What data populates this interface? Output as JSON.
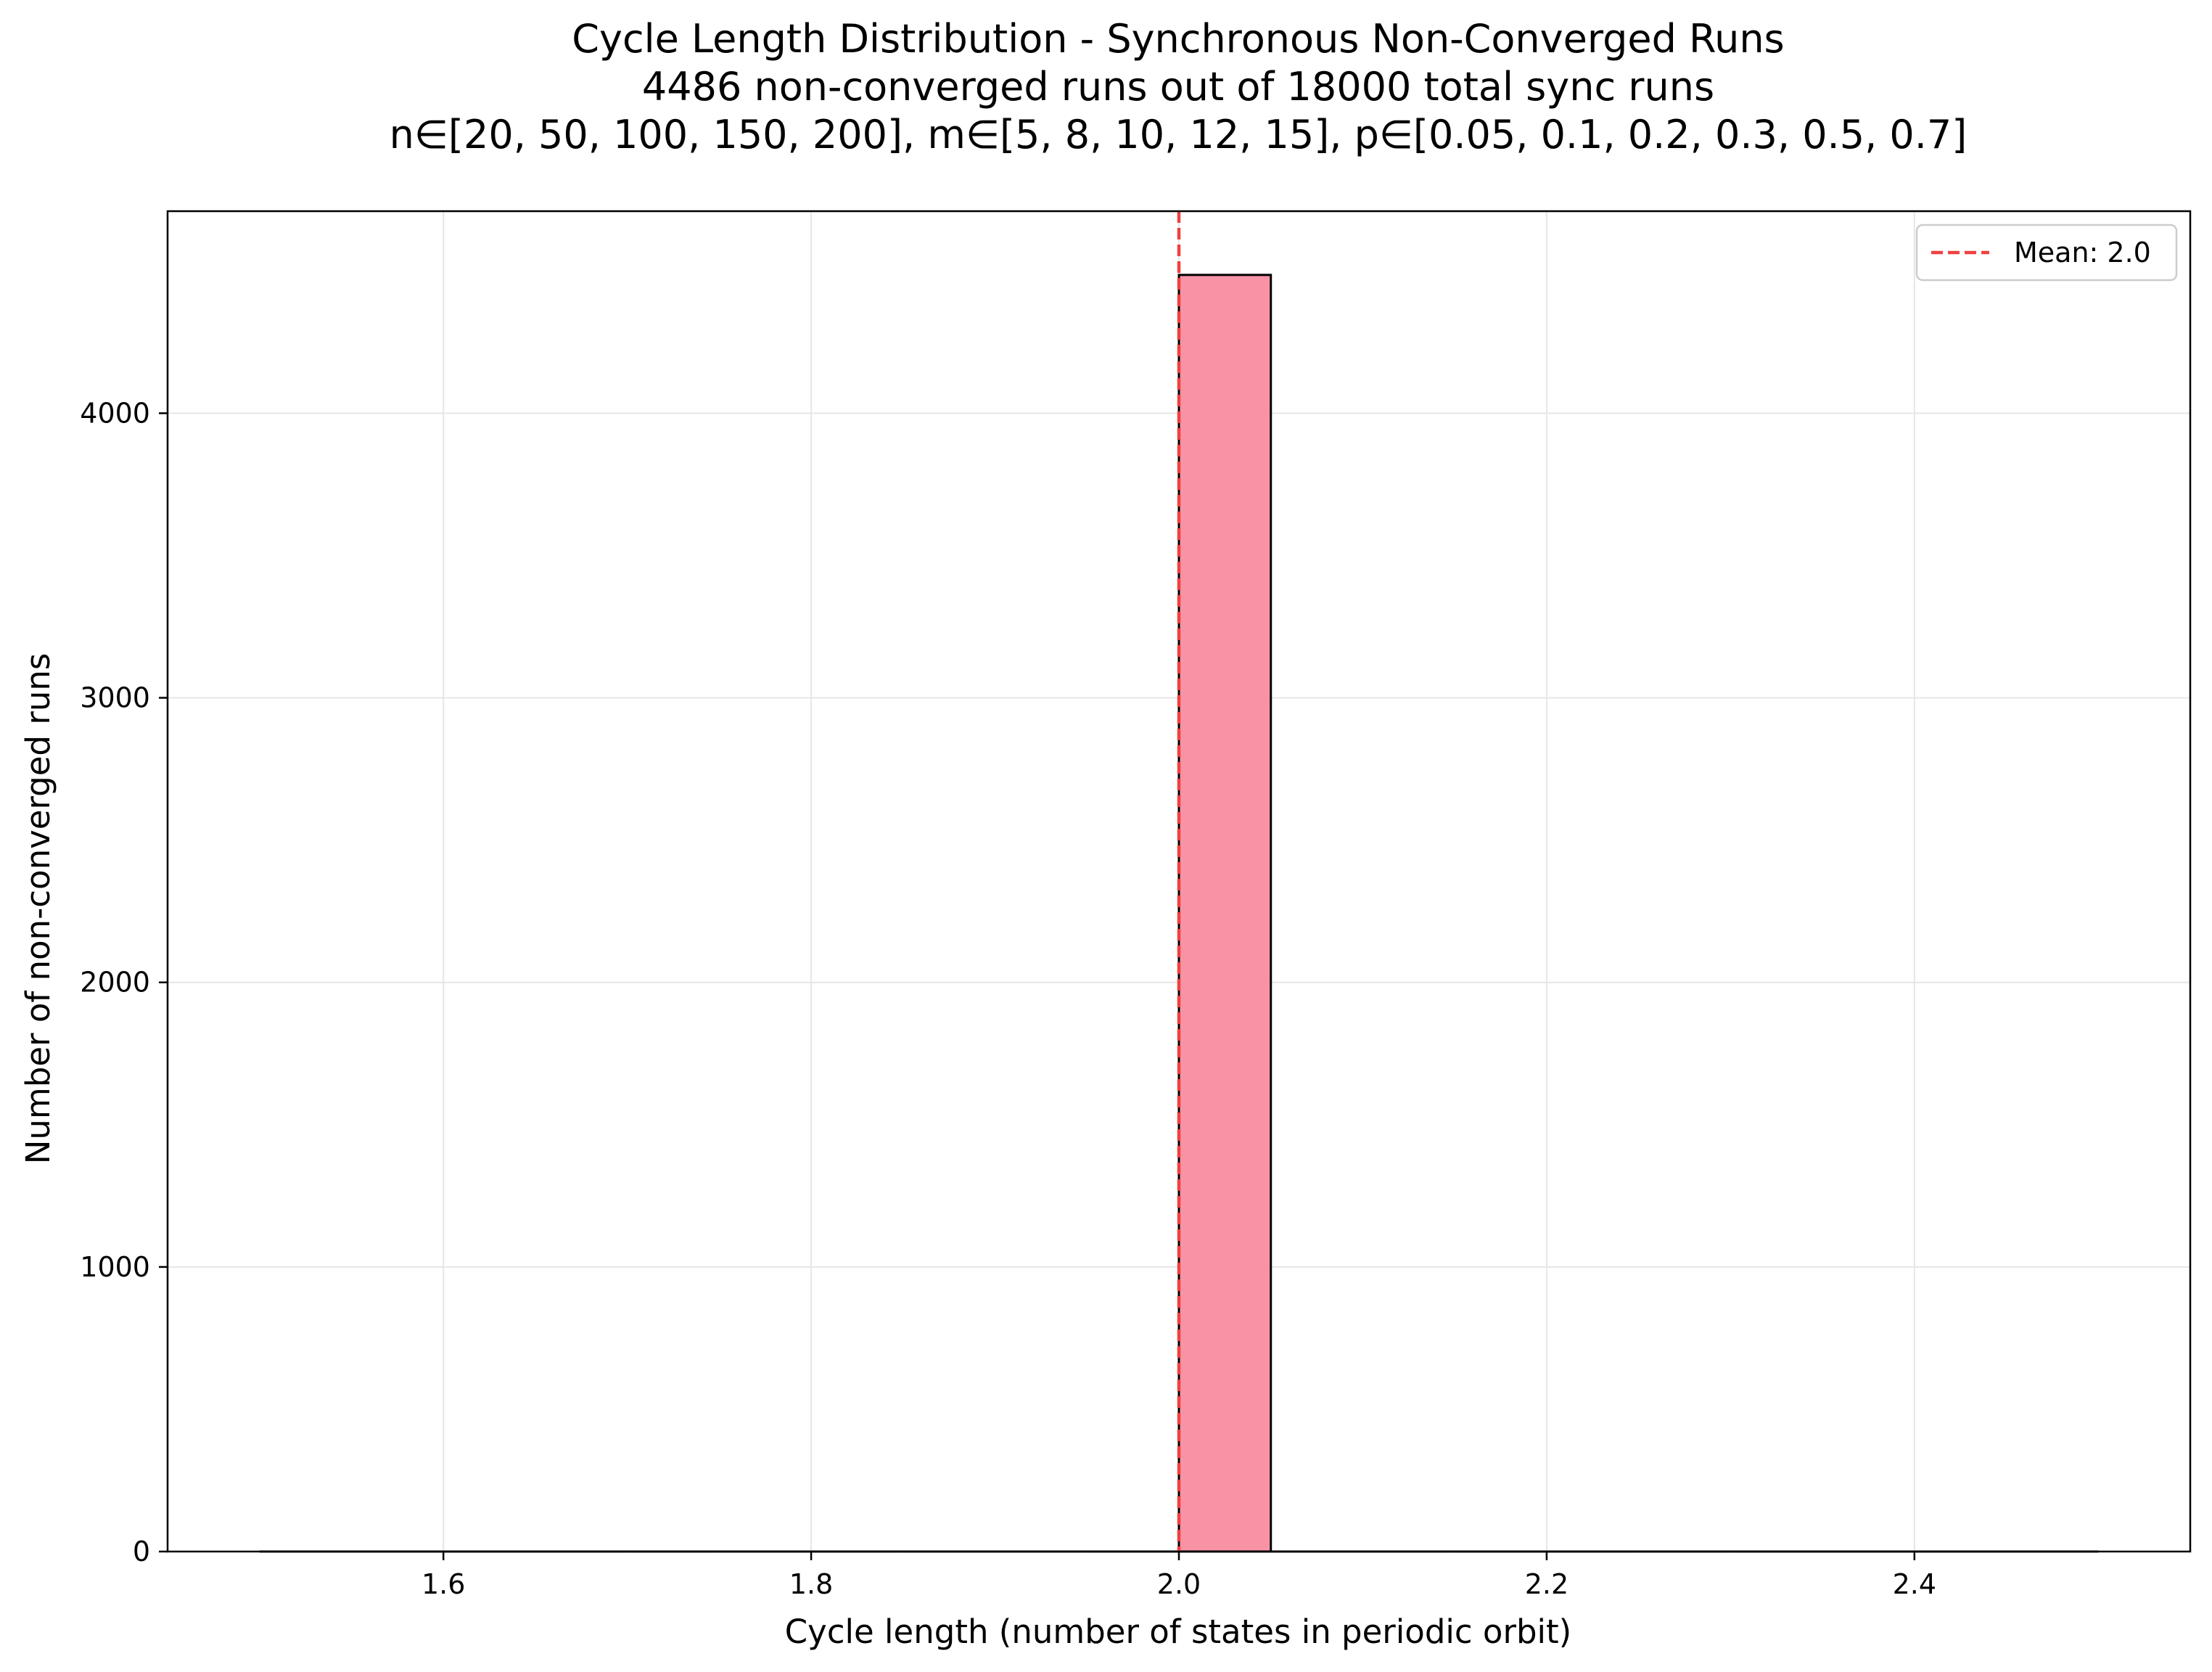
{
  "chart_data": {
    "type": "bar",
    "title_lines": [
      "Cycle Length Distribution - Synchronous Non-Converged Runs",
      "4486 non-converged runs out of 18000 total sync runs",
      "n∈[20, 50, 100, 150, 200], m∈[5, 8, 10, 12, 15], p∈[0.05, 0.1, 0.2, 0.3, 0.5, 0.7]"
    ],
    "xlabel": "Cycle length (number of states in periodic orbit)",
    "ylabel": "Number of non-converged runs",
    "xlim": [
      1.45,
      2.55
    ],
    "ylim": [
      0,
      4710
    ],
    "xticks": [
      1.6,
      1.8,
      2.0,
      2.2,
      2.4
    ],
    "xtick_labels": [
      "1.6",
      "1.8",
      "2.0",
      "2.2",
      "2.4"
    ],
    "yticks": [
      0,
      1000,
      2000,
      3000,
      4000
    ],
    "ytick_labels": [
      "0",
      "1000",
      "2000",
      "3000",
      "4000"
    ],
    "bins": [
      {
        "x0": 1.5,
        "x1": 1.55,
        "count": 0
      },
      {
        "x0": 1.55,
        "x1": 1.6,
        "count": 0
      },
      {
        "x0": 1.6,
        "x1": 1.65,
        "count": 0
      },
      {
        "x0": 1.65,
        "x1": 1.7,
        "count": 0
      },
      {
        "x0": 1.7,
        "x1": 1.75,
        "count": 0
      },
      {
        "x0": 1.75,
        "x1": 1.8,
        "count": 0
      },
      {
        "x0": 1.8,
        "x1": 1.85,
        "count": 0
      },
      {
        "x0": 1.85,
        "x1": 1.9,
        "count": 0
      },
      {
        "x0": 1.9,
        "x1": 1.95,
        "count": 0
      },
      {
        "x0": 1.95,
        "x1": 2.0,
        "count": 0
      },
      {
        "x0": 2.0,
        "x1": 2.05,
        "count": 4486
      },
      {
        "x0": 2.05,
        "x1": 2.1,
        "count": 0
      },
      {
        "x0": 2.1,
        "x1": 2.15,
        "count": 0
      },
      {
        "x0": 2.15,
        "x1": 2.2,
        "count": 0
      },
      {
        "x0": 2.2,
        "x1": 2.25,
        "count": 0
      },
      {
        "x0": 2.25,
        "x1": 2.3,
        "count": 0
      },
      {
        "x0": 2.3,
        "x1": 2.35,
        "count": 0
      },
      {
        "x0": 2.35,
        "x1": 2.4,
        "count": 0
      },
      {
        "x0": 2.4,
        "x1": 2.45,
        "count": 0
      },
      {
        "x0": 2.45,
        "x1": 2.5,
        "count": 0
      }
    ],
    "mean_line": {
      "x": 2.0,
      "label": "Mean: 2.0"
    },
    "grid": true,
    "legend_position": "top-right",
    "colors": {
      "bar_fill": "#f893a6",
      "bar_edge": "#000000",
      "mean_line": "#f04040",
      "grid": "#e6e6e6"
    }
  }
}
